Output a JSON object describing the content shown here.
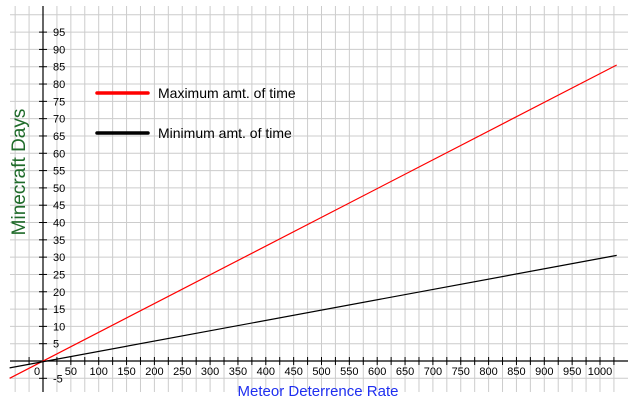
{
  "chart_data": {
    "type": "line",
    "title": "",
    "xlabel": "Meteor Deterrence Rate",
    "ylabel": "Minecraft Days",
    "xlim": [
      -60,
      1030
    ],
    "ylim": [
      -8,
      98
    ],
    "x_ticks": [
      0,
      50,
      100,
      150,
      200,
      250,
      300,
      350,
      400,
      450,
      500,
      550,
      600,
      650,
      700,
      750,
      800,
      850,
      900,
      950,
      1000
    ],
    "x_tick_labels": [
      "0",
      "50",
      "100",
      "150",
      "200",
      "250",
      "300",
      "350",
      "400",
      "450",
      "500",
      "550",
      "600",
      "650",
      "700",
      "750",
      "800",
      "850",
      "900",
      "950",
      "1000"
    ],
    "y_ticks": [
      -5,
      5,
      10,
      15,
      20,
      25,
      30,
      35,
      40,
      45,
      50,
      55,
      60,
      65,
      70,
      75,
      80,
      85,
      90,
      95
    ],
    "y_tick_labels": [
      "-5",
      "5",
      "10",
      "15",
      "20",
      "25",
      "30",
      "35",
      "40",
      "45",
      "50",
      "55",
      "60",
      "65",
      "70",
      "75",
      "80",
      "85",
      "90",
      "95"
    ],
    "origin_label": "0",
    "grid": true,
    "legend_position": "top-left",
    "series": [
      {
        "name": "Maximum amt. of time",
        "color": "#ff0000",
        "x": [
          -60,
          1030
        ],
        "y": [
          -5,
          85.5
        ]
      },
      {
        "name": "Minimum amt. of time",
        "color": "#000000",
        "x": [
          -60,
          1030
        ],
        "y": [
          -2,
          30.5
        ]
      }
    ]
  }
}
